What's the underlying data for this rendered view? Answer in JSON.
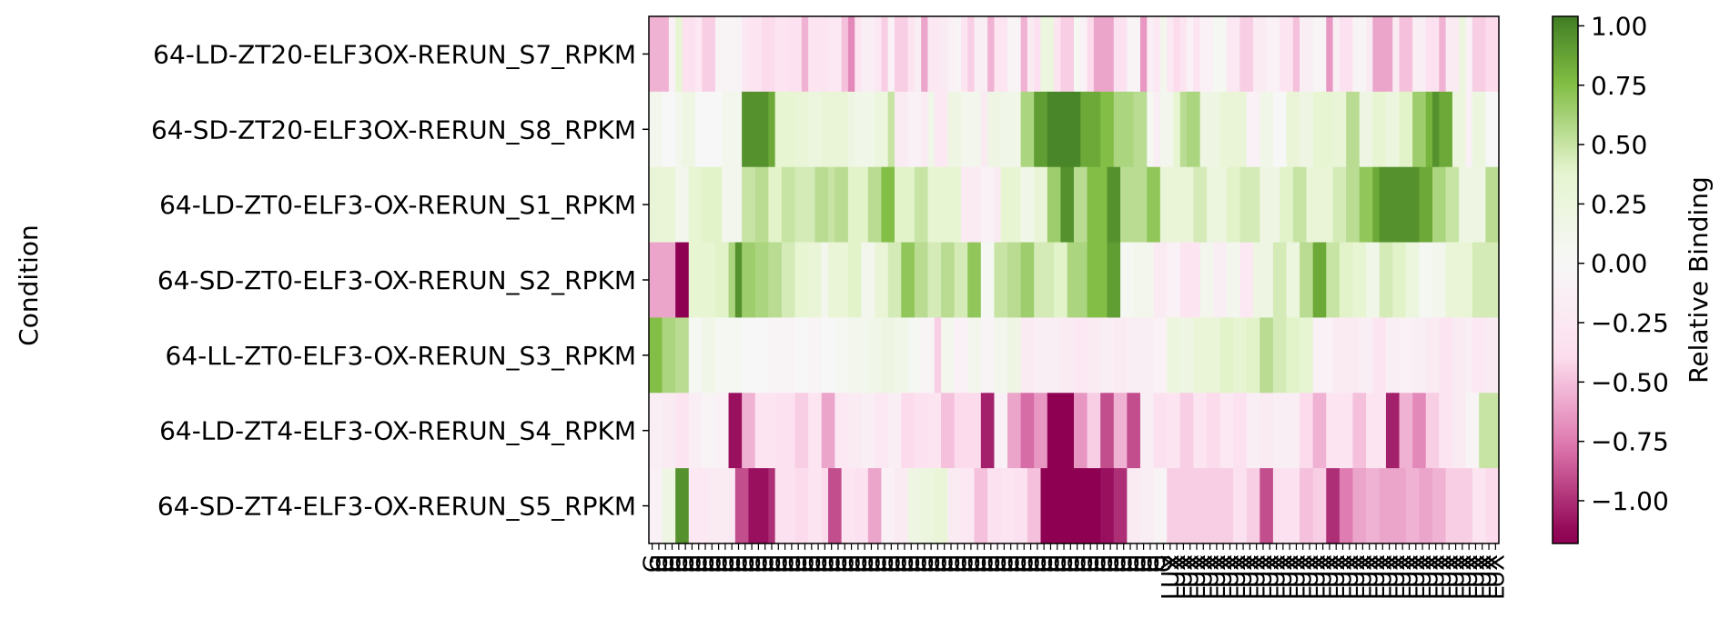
{
  "chart_data": {
    "type": "heatmap",
    "title": "",
    "xlabel": "",
    "ylabel": "Condition",
    "colorbar": {
      "label": "Relative Binding",
      "range": [
        -1.18,
        1.04
      ],
      "ticks": [
        1.0,
        0.75,
        0.5,
        0.25,
        0.0,
        -0.25,
        -0.5,
        -0.75,
        -1.0
      ],
      "tick_labels": [
        "1.00",
        "0.75",
        "0.50",
        "0.25",
        "0.00",
        "−0.25",
        "−0.50",
        "−0.75",
        "−1.00"
      ],
      "colormap": "PiYG",
      "colors": {
        "neg_end": "#8e0152",
        "neg_mid": "#de77ae",
        "neg_light": "#fde0ef",
        "center": "#f7f7f7",
        "pos_light": "#e6f5d0",
        "pos_mid": "#7fbc41",
        "pos_end": "#276419"
      }
    },
    "rows": [
      "64-LD-ZT20-ELF3OX-RERUN_S7_RPKM",
      "64-SD-ZT20-ELF3OX-RERUN_S8_RPKM",
      "64-LD-ZT0-ELF3-OX-RERUN_S1_RPKM",
      "64-SD-ZT0-ELF3-OX-RERUN_S2_RPKM",
      "64-LL-ZT0-ELF3-OX-RERUN_S3_RPKM",
      "64-LD-ZT4-ELF3-OX-RERUN_S4_RPKM",
      "64-SD-ZT4-ELF3-OX-RERUN_S5_RPKM"
    ],
    "columns": {
      "count": 128,
      "labels_first_78": "G",
      "labels_rest": "LUX"
    },
    "values": [
      [
        -0.55,
        -0.55,
        -0.55,
        -0.1,
        0.35,
        -0.35,
        -0.35,
        -0.25,
        -0.45,
        -0.45,
        -0.05,
        -0.05,
        -0.05,
        -0.05,
        -0.25,
        -0.3,
        -0.3,
        -0.4,
        -0.4,
        -0.3,
        -0.3,
        -0.35,
        -0.35,
        -0.55,
        -0.3,
        -0.3,
        -0.3,
        -0.25,
        -0.25,
        -0.5,
        -0.7,
        -0.3,
        -0.15,
        -0.15,
        -0.25,
        -0.45,
        -0.1,
        -0.45,
        -0.45,
        -0.3,
        -0.15,
        -0.6,
        -0.25,
        -0.25,
        -0.2,
        -0.1,
        -0.05,
        -0.3,
        -0.45,
        -0.15,
        -0.15,
        -0.55,
        -0.3,
        -0.3,
        -0.05,
        -0.05,
        -0.55,
        -0.2,
        -0.35,
        0.25,
        0.25,
        -0.3,
        -0.45,
        -0.45,
        0.05,
        -0.1,
        -0.4,
        -0.6,
        -0.6,
        -0.6,
        -0.35,
        -0.35,
        -0.05,
        -0.05,
        -0.65,
        -0.15,
        -0.25,
        0.1,
        -0.25,
        -0.4,
        -0.3,
        -0.1,
        -0.3,
        -0.1,
        -0.1,
        0.05,
        0.05,
        -0.25,
        -0.25,
        -0.45,
        -0.45,
        -0.2,
        -0.2,
        -0.1,
        -0.1,
        -0.3,
        -0.3,
        -0.5,
        -0.15,
        -0.15,
        -0.05,
        -0.05,
        -0.65,
        -0.15,
        -0.35,
        -0.35,
        -0.05,
        -0.05,
        -0.2,
        -0.6,
        -0.6,
        -0.6,
        -0.2,
        -0.5,
        -0.5,
        -0.15,
        -0.15,
        -0.35,
        -0.35,
        -0.55,
        -0.2,
        -0.2,
        0.25,
        -0.1,
        -0.45,
        -0.45,
        -0.4,
        -0.4
      ],
      [
        0.1,
        0.1,
        0.0,
        0.0,
        0.1,
        0.2,
        0.2,
        0.0,
        0.0,
        0.0,
        0.0,
        0.1,
        0.1,
        0.1,
        0.95,
        0.95,
        0.95,
        0.95,
        0.85,
        0.35,
        0.35,
        0.35,
        0.3,
        0.3,
        0.25,
        0.25,
        0.3,
        0.3,
        0.3,
        0.3,
        0.2,
        0.15,
        0.15,
        0.15,
        0.25,
        0.25,
        0.5,
        -0.2,
        -0.2,
        -0.1,
        -0.1,
        -0.2,
        0.15,
        -0.25,
        -0.25,
        0.2,
        0.2,
        0.1,
        0.1,
        0.1,
        -0.2,
        0.2,
        0.2,
        0.15,
        0.15,
        0.15,
        0.6,
        0.6,
        0.9,
        0.9,
        1.0,
        1.0,
        1.0,
        1.0,
        1.0,
        0.85,
        0.85,
        0.85,
        0.75,
        0.75,
        0.6,
        0.6,
        0.6,
        0.55,
        0.55,
        0.05,
        -0.15,
        0.1,
        0.1,
        0.35,
        0.55,
        0.6,
        0.6,
        0.2,
        0.2,
        0.2,
        0.3,
        0.3,
        0.3,
        0.3,
        -0.1,
        -0.1,
        0.15,
        0.15,
        0.0,
        0.0,
        0.3,
        0.3,
        0.2,
        0.2,
        0.35,
        0.35,
        0.35,
        0.3,
        0.3,
        0.55,
        0.55,
        0.2,
        0.2,
        0.35,
        0.35,
        0.25,
        0.25,
        0.4,
        0.4,
        0.65,
        0.65,
        0.8,
        0.95,
        0.85,
        0.85,
        0.25,
        0.25,
        -0.1,
        0.25,
        0.25,
        0.0,
        0.0
      ],
      [
        0.3,
        0.3,
        0.3,
        0.3,
        0.1,
        0.1,
        0.35,
        0.35,
        0.4,
        0.4,
        0.4,
        0.1,
        0.1,
        0.1,
        0.5,
        0.5,
        0.55,
        0.55,
        0.4,
        0.4,
        0.5,
        0.5,
        0.45,
        0.45,
        0.45,
        0.55,
        0.55,
        0.5,
        0.55,
        0.55,
        0.4,
        0.4,
        0.4,
        0.55,
        0.55,
        0.75,
        0.75,
        0.4,
        0.4,
        0.4,
        0.5,
        0.5,
        0.35,
        0.35,
        0.35,
        0.35,
        0.35,
        -0.2,
        -0.2,
        -0.2,
        -0.1,
        -0.1,
        -0.2,
        0.35,
        0.35,
        0.35,
        0.15,
        0.15,
        0.3,
        0.3,
        0.65,
        0.65,
        0.95,
        0.95,
        0.55,
        0.55,
        0.75,
        0.75,
        0.75,
        0.95,
        0.95,
        0.55,
        0.55,
        0.55,
        0.55,
        0.7,
        0.7,
        0.3,
        0.3,
        0.3,
        0.3,
        0.3,
        0.45,
        0.45,
        0.25,
        0.25,
        0.25,
        0.4,
        0.4,
        0.45,
        0.45,
        0.45,
        0.2,
        0.2,
        0.2,
        0.4,
        0.4,
        0.5,
        0.5,
        0.3,
        0.3,
        0.3,
        0.3,
        0.45,
        0.45,
        0.55,
        0.55,
        0.7,
        0.7,
        0.85,
        0.95,
        0.95,
        0.95,
        0.95,
        0.95,
        0.95,
        0.85,
        0.85,
        0.6,
        0.6,
        0.5,
        0.5,
        0.2,
        0.2,
        0.2,
        0.2,
        0.55,
        0.55
      ],
      [
        -0.6,
        -0.6,
        -0.6,
        -0.6,
        -1.15,
        -1.15,
        0.35,
        0.35,
        0.35,
        0.35,
        0.4,
        0.4,
        0.6,
        0.95,
        0.65,
        0.65,
        0.6,
        0.6,
        0.55,
        0.55,
        0.45,
        0.45,
        0.35,
        0.35,
        0.3,
        0.3,
        0.1,
        0.3,
        0.3,
        0.3,
        0.4,
        0.4,
        0.1,
        0.1,
        0.3,
        0.3,
        0.45,
        0.45,
        0.7,
        0.7,
        0.55,
        0.55,
        0.45,
        0.45,
        0.55,
        0.55,
        0.45,
        0.45,
        0.7,
        0.7,
        0.05,
        0.05,
        0.5,
        0.5,
        0.55,
        0.55,
        0.65,
        0.65,
        0.45,
        0.45,
        0.45,
        0.4,
        0.4,
        0.6,
        0.6,
        0.6,
        0.75,
        0.75,
        0.75,
        0.9,
        0.9,
        0.05,
        0.05,
        0.1,
        0.1,
        0.1,
        -0.2,
        -0.2,
        -0.1,
        -0.1,
        -0.3,
        -0.3,
        -0.3,
        0.1,
        0.1,
        -0.15,
        -0.15,
        0.1,
        0.1,
        -0.25,
        -0.25,
        0.2,
        0.2,
        0.2,
        0.45,
        0.45,
        0.25,
        0.25,
        0.55,
        0.55,
        0.85,
        0.85,
        0.5,
        0.5,
        0.4,
        0.4,
        0.35,
        0.35,
        0.15,
        0.15,
        0.45,
        0.45,
        0.4,
        0.4,
        0.25,
        0.25,
        0.05,
        0.05,
        0.1,
        0.1,
        0.3,
        0.3,
        0.3,
        0.3,
        0.45,
        0.45,
        0.45,
        0.45
      ],
      [
        0.75,
        0.75,
        0.6,
        0.6,
        0.55,
        0.55,
        0.05,
        0.05,
        0.15,
        0.15,
        0.05,
        0.05,
        0.05,
        0.05,
        0.0,
        0.0,
        0.0,
        0.0,
        -0.05,
        -0.05,
        -0.05,
        -0.05,
        0.0,
        0.0,
        -0.05,
        -0.05,
        0.0,
        0.0,
        0.05,
        0.05,
        0.1,
        0.1,
        0.1,
        0.15,
        0.15,
        0.2,
        0.2,
        0.15,
        0.15,
        0.05,
        0.05,
        -0.05,
        -0.05,
        -0.45,
        0.1,
        0.1,
        -0.1,
        -0.1,
        0.1,
        0.1,
        -0.05,
        -0.05,
        0.1,
        0.1,
        0.2,
        0.2,
        -0.2,
        -0.2,
        -0.15,
        -0.15,
        -0.15,
        -0.15,
        -0.2,
        -0.2,
        -0.25,
        -0.25,
        -0.2,
        -0.2,
        -0.15,
        -0.15,
        -0.2,
        -0.2,
        -0.15,
        -0.15,
        -0.15,
        -0.15,
        -0.1,
        -0.1,
        0.25,
        0.25,
        0.2,
        0.2,
        0.3,
        0.3,
        0.3,
        0.3,
        0.4,
        0.4,
        0.35,
        0.35,
        0.4,
        0.4,
        0.55,
        0.55,
        0.45,
        0.45,
        0.4,
        0.4,
        0.35,
        0.35,
        -0.1,
        -0.1,
        -0.1,
        -0.2,
        -0.2,
        -0.2,
        -0.2,
        -0.15,
        -0.15,
        -0.3,
        -0.3,
        -0.15,
        -0.15,
        -0.1,
        -0.1,
        -0.15,
        -0.15,
        -0.2,
        -0.2,
        -0.3,
        -0.3,
        -0.2,
        -0.2,
        -0.15,
        -0.25,
        -0.25,
        -0.2,
        -0.2
      ],
      [
        -0.15,
        -0.15,
        -0.2,
        -0.2,
        -0.3,
        -0.3,
        -0.15,
        -0.15,
        -0.05,
        -0.05,
        -0.1,
        -0.1,
        -1.1,
        -1.1,
        -0.55,
        -0.55,
        -0.3,
        -0.3,
        -0.3,
        -0.35,
        -0.35,
        -0.35,
        -0.45,
        -0.45,
        -0.3,
        -0.3,
        -0.6,
        -0.6,
        -0.25,
        -0.25,
        -0.2,
        -0.2,
        -0.15,
        -0.15,
        -0.25,
        -0.25,
        -0.15,
        -0.15,
        -0.4,
        -0.4,
        -0.35,
        -0.35,
        -0.3,
        -0.3,
        -0.5,
        -0.5,
        -0.4,
        -0.4,
        -0.4,
        -0.4,
        -1.05,
        -1.05,
        -0.1,
        -0.1,
        -0.6,
        -0.6,
        -0.8,
        -0.8,
        -0.65,
        -0.65,
        -1.15,
        -1.15,
        -1.15,
        -1.15,
        -0.65,
        -0.65,
        -0.45,
        -0.45,
        -0.9,
        -0.9,
        -0.55,
        -0.55,
        -0.9,
        -0.9,
        -0.15,
        -0.15,
        -0.35,
        -0.35,
        -0.3,
        -0.3,
        -0.45,
        -0.45,
        -0.3,
        -0.3,
        -0.4,
        -0.4,
        -0.25,
        -0.25,
        -0.35,
        -0.35,
        -0.15,
        -0.15,
        -0.2,
        -0.2,
        -0.15,
        -0.15,
        -0.15,
        -0.15,
        -0.4,
        -0.4,
        -0.55,
        -0.55,
        -0.3,
        -0.3,
        -0.3,
        -0.3,
        -0.5,
        -0.5,
        -0.3,
        -0.3,
        -0.3,
        -1.05,
        -1.05,
        -0.55,
        -0.55,
        -0.7,
        -0.7,
        -0.45,
        -0.45,
        -0.3,
        -0.3,
        -0.2,
        -0.2,
        -0.05,
        -0.05,
        0.5,
        0.5,
        0.5
      ],
      [
        -0.1,
        -0.1,
        0.2,
        0.2,
        0.95,
        0.95,
        -0.25,
        -0.25,
        -0.25,
        -0.2,
        -0.2,
        -0.2,
        -0.25,
        -0.9,
        -0.9,
        -1.1,
        -1.1,
        -1.1,
        -1.0,
        -0.35,
        -0.35,
        -0.35,
        -0.4,
        -0.4,
        -0.3,
        -0.3,
        -0.4,
        -0.9,
        -0.9,
        -0.3,
        -0.3,
        -0.35,
        -0.35,
        -0.6,
        -0.6,
        -0.1,
        -0.1,
        -0.2,
        -0.2,
        0.2,
        0.2,
        0.25,
        0.25,
        0.3,
        0.3,
        -0.2,
        -0.2,
        -0.25,
        -0.25,
        -0.5,
        -0.5,
        -0.35,
        -0.35,
        -0.3,
        -0.3,
        -0.35,
        -0.35,
        -0.5,
        -0.5,
        -1.15,
        -1.15,
        -1.15,
        -1.15,
        -1.15,
        -1.15,
        -1.15,
        -1.15,
        -1.15,
        -1.1,
        -1.1,
        -1.0,
        -1.0,
        -0.2,
        -0.2,
        -0.15,
        -0.15,
        -0.05,
        -0.05,
        -0.45,
        -0.45,
        -0.45,
        -0.45,
        -0.45,
        -0.45,
        -0.45,
        -0.45,
        -0.45,
        -0.45,
        -0.35,
        -0.35,
        -0.45,
        -0.45,
        -0.9,
        -0.9,
        -0.35,
        -0.35,
        -0.35,
        -0.35,
        -0.5,
        -0.5,
        -0.45,
        -0.45,
        -1.0,
        -1.0,
        -0.75,
        -0.75,
        -0.6,
        -0.6,
        -0.55,
        -0.55,
        -0.6,
        -0.6,
        -0.6,
        -0.6,
        -0.55,
        -0.55,
        -0.6,
        -0.6,
        -0.55,
        -0.55,
        -0.45,
        -0.45,
        -0.45,
        -0.45,
        -0.3,
        -0.3,
        -0.4,
        -0.4
      ]
    ]
  }
}
